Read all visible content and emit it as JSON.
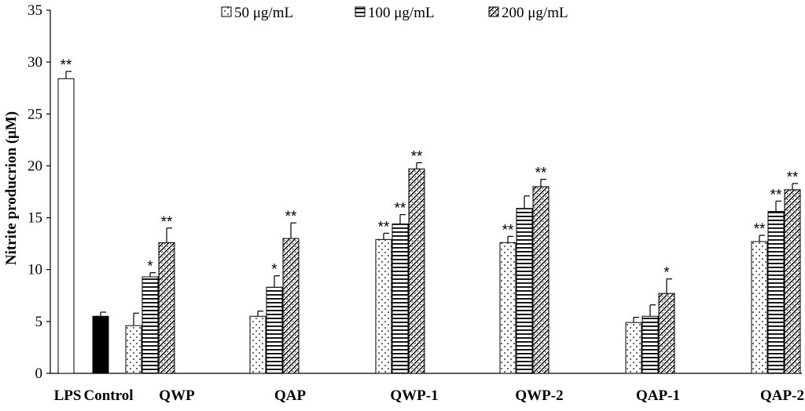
{
  "chart_data": {
    "type": "bar",
    "ylabel": "Nitrite producrion (μM)",
    "ylim": [
      0,
      35
    ],
    "yticks": [
      0,
      5,
      10,
      15,
      20,
      25,
      30,
      35
    ],
    "grid": false,
    "legend_position": "top",
    "categories": [
      "LPS",
      "Control",
      "QWP",
      "QAP",
      "QWP-1",
      "QWP-2",
      "QAP-1",
      "QAP-2"
    ],
    "single_bars": [
      {
        "category": "LPS",
        "value": 28.4,
        "error": 0.7,
        "significance": "**",
        "fill": "white"
      },
      {
        "category": "Control",
        "value": 5.5,
        "error": 0.4,
        "significance": "",
        "fill": "black"
      }
    ],
    "series": [
      {
        "name": "50 μg/mL",
        "pattern": "dots",
        "values": [
          null,
          null,
          4.6,
          5.5,
          12.9,
          12.6,
          4.9,
          12.7
        ],
        "errors": [
          null,
          null,
          1.2,
          0.5,
          0.6,
          0.6,
          0.5,
          0.6
        ],
        "significance": [
          "",
          "",
          "",
          "",
          "**",
          "**",
          "",
          "**"
        ]
      },
      {
        "name": "100 μg/mL",
        "pattern": "horizontal-lines",
        "values": [
          null,
          null,
          9.3,
          8.3,
          14.4,
          15.9,
          5.5,
          15.6
        ],
        "errors": [
          null,
          null,
          0.4,
          1.1,
          0.9,
          1.2,
          1.1,
          1.0
        ],
        "significance": [
          "",
          "",
          "*",
          "*",
          "**",
          "",
          "",
          "**"
        ]
      },
      {
        "name": "200 μg/mL",
        "pattern": "diagonal-hatch",
        "values": [
          null,
          null,
          12.6,
          13.0,
          19.7,
          18.0,
          7.7,
          17.7
        ],
        "errors": [
          null,
          null,
          1.4,
          1.5,
          0.6,
          0.7,
          1.4,
          0.6
        ],
        "significance": [
          "",
          "",
          "**",
          "**",
          "**",
          "**",
          "*",
          "**"
        ]
      }
    ]
  }
}
